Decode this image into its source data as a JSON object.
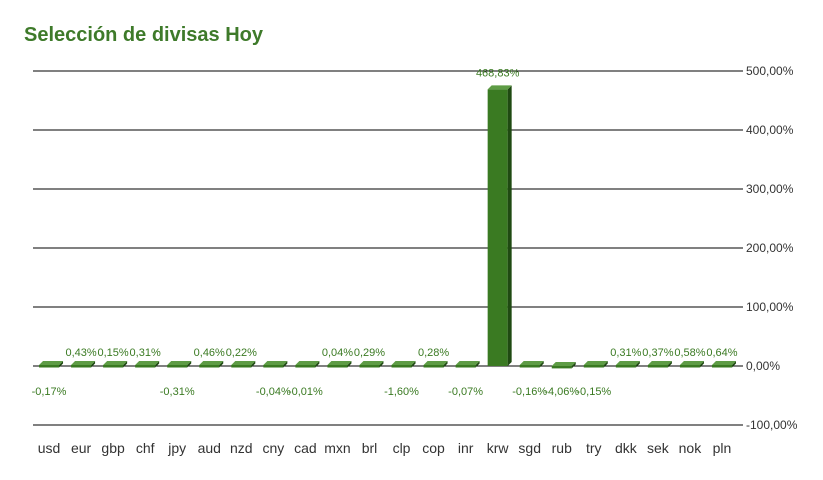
{
  "title": "Selección de divisas Hoy",
  "chart_data": {
    "type": "bar",
    "title": "Selección de divisas Hoy",
    "xlabel": "",
    "ylabel": "",
    "ylim": [
      -100,
      500
    ],
    "y_ticks": [
      500,
      400,
      300,
      200,
      100,
      0,
      -100
    ],
    "y_tick_labels": [
      "500,00%",
      "400,00%",
      "300,00%",
      "200,00%",
      "100,00%",
      "0,00%",
      "-100,00%"
    ],
    "y_axis_position": "right",
    "grid": true,
    "categories": [
      "usd",
      "eur",
      "gbp",
      "chf",
      "jpy",
      "aud",
      "nzd",
      "cny",
      "cad",
      "mxn",
      "brl",
      "clp",
      "cop",
      "inr",
      "krw",
      "sgd",
      "rub",
      "try",
      "dkk",
      "sek",
      "nok",
      "pln"
    ],
    "values": [
      -0.17,
      0.43,
      0.15,
      0.31,
      -0.31,
      0.46,
      0.22,
      -0.04,
      -0.01,
      0.04,
      0.29,
      -1.6,
      0.28,
      -0.07,
      468.83,
      -0.16,
      -4.06,
      -0.15,
      0.31,
      0.37,
      0.58,
      0.64
    ],
    "value_labels": [
      "-0,17%",
      "0,43%",
      "0,15%",
      "0,31%",
      "-0,31%",
      "0,46%",
      "0,22%",
      "-0,04%",
      "-0,01%",
      "0,04%",
      "0,29%",
      "-1,60%",
      "0,28%",
      "-0,07%",
      "468,83%",
      "-0,16%",
      "-4,06%",
      "-0,15%",
      "0,31%",
      "0,37%",
      "0,58%",
      "0,64%"
    ],
    "colors": {
      "bar_front": "#3a7a22",
      "bar_side": "#1f4a12",
      "bar_top": "#5e9c45",
      "label": "#3a7a22",
      "grid": "#000000"
    }
  }
}
